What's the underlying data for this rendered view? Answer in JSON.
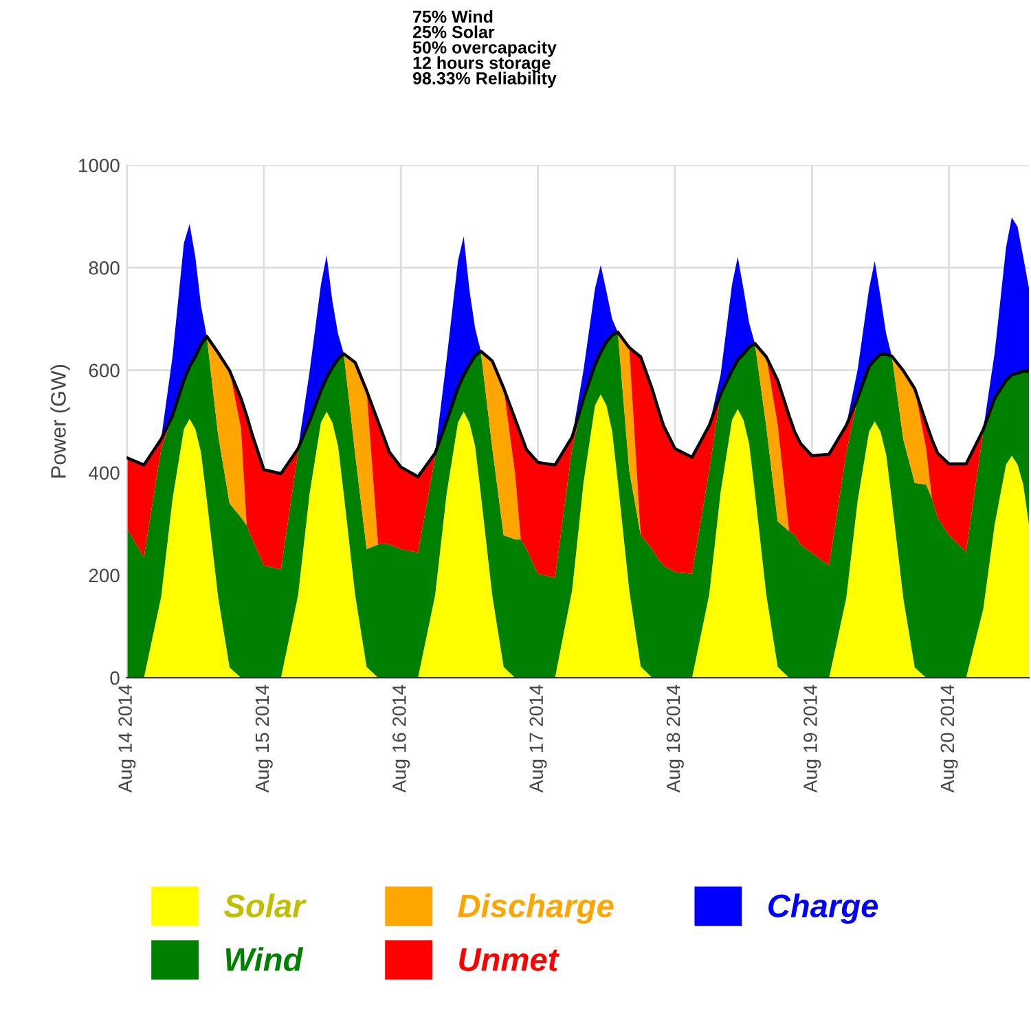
{
  "chart_data": {
    "type": "area",
    "stacked": true,
    "title": "75% Wind\n25% Solar\n50% overcapacity\n12 hours storage\n98.33% Reliability",
    "ylabel": "Power (GW)",
    "x": [
      "2014-08-14T00:00",
      "2014-08-14T03:00",
      "2014-08-14T06:00",
      "2014-08-14T08:00",
      "2014-08-14T10:00",
      "2014-08-14T11:00",
      "2014-08-14T12:00",
      "2014-08-14T13:00",
      "2014-08-14T14:00",
      "2014-08-14T16:00",
      "2014-08-14T18:00",
      "2014-08-14T20:00",
      "2014-08-14T21:00",
      "2014-08-14T22:00",
      "2014-08-15T00:00",
      "2014-08-15T03:00",
      "2014-08-15T06:00",
      "2014-08-15T08:00",
      "2014-08-15T10:00",
      "2014-08-15T11:00",
      "2014-08-15T12:00",
      "2014-08-15T13:00",
      "2014-08-15T14:00",
      "2014-08-15T16:00",
      "2014-08-15T18:00",
      "2014-08-15T20:00",
      "2014-08-15T21:00",
      "2014-08-15T22:00",
      "2014-08-16T00:00",
      "2014-08-16T03:00",
      "2014-08-16T06:00",
      "2014-08-16T08:00",
      "2014-08-16T10:00",
      "2014-08-16T11:00",
      "2014-08-16T12:00",
      "2014-08-16T13:00",
      "2014-08-16T14:00",
      "2014-08-16T16:00",
      "2014-08-16T18:00",
      "2014-08-16T20:00",
      "2014-08-16T21:00",
      "2014-08-16T22:00",
      "2014-08-17T00:00",
      "2014-08-17T03:00",
      "2014-08-17T06:00",
      "2014-08-17T08:00",
      "2014-08-17T10:00",
      "2014-08-17T11:00",
      "2014-08-17T12:00",
      "2014-08-17T13:00",
      "2014-08-17T14:00",
      "2014-08-17T16:00",
      "2014-08-17T18:00",
      "2014-08-17T20:00",
      "2014-08-17T21:00",
      "2014-08-17T22:00",
      "2014-08-18T00:00",
      "2014-08-18T03:00",
      "2014-08-18T06:00",
      "2014-08-18T08:00",
      "2014-08-18T10:00",
      "2014-08-18T11:00",
      "2014-08-18T12:00",
      "2014-08-18T13:00",
      "2014-08-18T14:00",
      "2014-08-18T16:00",
      "2014-08-18T18:00",
      "2014-08-18T20:00",
      "2014-08-18T21:00",
      "2014-08-18T22:00",
      "2014-08-19T00:00",
      "2014-08-19T03:00",
      "2014-08-19T06:00",
      "2014-08-19T08:00",
      "2014-08-19T10:00",
      "2014-08-19T11:00",
      "2014-08-19T12:00",
      "2014-08-19T13:00",
      "2014-08-19T14:00",
      "2014-08-19T16:00",
      "2014-08-19T18:00",
      "2014-08-19T20:00",
      "2014-08-19T21:00",
      "2014-08-19T22:00",
      "2014-08-20T00:00",
      "2014-08-20T03:00",
      "2014-08-20T06:00",
      "2014-08-20T08:00",
      "2014-08-20T10:00",
      "2014-08-20T11:00",
      "2014-08-20T12:00",
      "2014-08-20T13:00",
      "2014-08-20T14:00"
    ],
    "series": [
      {
        "name": "Solar",
        "color": "#ffff00",
        "values": [
          null,
          0,
          157,
          348,
          485,
          505,
          485,
          439,
          348,
          157,
          20,
          0,
          null,
          null,
          null,
          0,
          161,
          358,
          498,
          519,
          498,
          452,
          358,
          161,
          21,
          0,
          null,
          null,
          null,
          0,
          161,
          358,
          498,
          519,
          498,
          452,
          358,
          161,
          21,
          0,
          null,
          null,
          null,
          0,
          171,
          382,
          531,
          553,
          531,
          481,
          382,
          171,
          22,
          0,
          null,
          null,
          null,
          0,
          162,
          362,
          503,
          524,
          503,
          456,
          362,
          162,
          21,
          0,
          null,
          null,
          null,
          0,
          155,
          345,
          480,
          500,
          480,
          435,
          345,
          155,
          20,
          0,
          null,
          null,
          null,
          0,
          134,
          299,
          416,
          433,
          416,
          377,
          299
        ]
      },
      {
        "name": "Wind",
        "color": "#008000",
        "values": [
          291,
          235,
          288,
          163,
          95,
          102,
          141,
          211,
          318,
          316,
          320,
          313,
          297,
          270,
          219,
          211,
          279,
          142,
          62,
          66,
          107,
          170,
          274,
          275,
          230,
          260,
          262,
          260,
          251,
          244,
          269,
          142,
          67,
          71,
          112,
          176,
          279,
          288,
          257,
          270,
          270,
          251,
          203,
          195,
          276,
          163,
          79,
          82,
          124,
          187,
          292,
          233,
          256,
          251,
          233,
          219,
          206,
          203,
          242,
          191,
          96,
          96,
          128,
          189,
          290,
          328,
          284,
          286,
          278,
          260,
          243,
          219,
          283,
          200,
          127,
          120,
          151,
          196,
          282,
          310,
          360,
          377,
          350,
          313,
          278,
          246,
          346,
          246,
          164,
          158,
          178,
          221,
          299
        ]
      },
      {
        "name": "Discharge",
        "color": "#ffa500",
        "values": [
          null,
          null,
          null,
          null,
          null,
          null,
          null,
          null,
          0,
          161,
          259,
          174,
          0,
          null,
          null,
          null,
          null,
          null,
          null,
          null,
          null,
          null,
          0,
          179,
          309,
          0,
          null,
          null,
          null,
          null,
          null,
          null,
          null,
          null,
          null,
          null,
          0,
          169,
          287,
          129,
          0,
          null,
          null,
          null,
          null,
          null,
          null,
          null,
          null,
          null,
          0,
          240,
          0,
          null,
          null,
          null,
          null,
          null,
          null,
          null,
          null,
          null,
          null,
          null,
          0,
          136,
          189,
          0,
          null,
          null,
          null,
          null,
          null,
          null,
          null,
          null,
          null,
          null,
          0,
          134,
          184,
          70,
          0,
          null,
          null,
          null,
          null,
          null,
          null,
          null,
          null,
          null,
          null
        ]
      },
      {
        "name": "Unmet",
        "color": "#ff0000",
        "values": [
          138,
          180,
          20,
          0,
          null,
          null,
          null,
          null,
          null,
          null,
          0,
          58,
          214,
          203,
          187,
          187,
          7,
          0,
          null,
          null,
          null,
          null,
          null,
          null,
          0,
          240,
          208,
          180,
          160,
          148,
          8,
          0,
          null,
          null,
          null,
          null,
          null,
          null,
          0,
          106,
          205,
          194,
          217,
          220,
          23,
          0,
          null,
          null,
          null,
          null,
          null,
          0,
          348,
          313,
          294,
          273,
          241,
          227,
          88,
          0,
          null,
          null,
          null,
          null,
          null,
          0,
          86,
          225,
          201,
          197,
          190,
          217,
          54,
          0,
          null,
          null,
          null,
          null,
          null,
          null,
          0,
          50,
          115,
          125,
          139,
          171,
          4,
          0,
          null,
          null,
          null,
          null,
          null
        ]
      },
      {
        "name": "Charge",
        "color": "#0000ff",
        "values": [
          null,
          null,
          0,
          115,
          268,
          278,
          195,
          75,
          0,
          null,
          null,
          null,
          null,
          null,
          null,
          null,
          0,
          96,
          207,
          239,
          130,
          49,
          0,
          null,
          null,
          null,
          null,
          null,
          null,
          null,
          0,
          120,
          248,
          271,
          147,
          54,
          0,
          null,
          null,
          null,
          null,
          null,
          null,
          null,
          0,
          56,
          149,
          170,
          99,
          32,
          0,
          null,
          null,
          null,
          null,
          null,
          null,
          null,
          0,
          38,
          168,
          201,
          128,
          47,
          0,
          null,
          null,
          null,
          null,
          null,
          null,
          null,
          0,
          56,
          152,
          193,
          112,
          40,
          0,
          null,
          null,
          null,
          null,
          null,
          null,
          null,
          0,
          89,
          260,
          307,
          286,
          223,
          162
        ]
      },
      {
        "type": "line",
        "color": "#000000",
        "values": [
          429,
          415,
          465,
          511,
          580,
          607,
          626,
          650,
          666,
          634,
          599,
          545,
          511,
          473,
          406,
          398,
          447,
          500,
          560,
          585,
          605,
          622,
          632,
          615,
          560,
          500,
          470,
          440,
          411,
          392,
          438,
          500,
          565,
          590,
          610,
          628,
          637,
          618,
          565,
          505,
          475,
          445,
          420,
          415,
          470,
          545,
          610,
          635,
          655,
          668,
          674,
          644,
          626,
          564,
          527,
          492,
          447,
          430,
          492,
          553,
          599,
          620,
          631,
          645,
          652,
          626,
          580,
          511,
          479,
          457,
          433,
          436,
          492,
          545,
          607,
          620,
          631,
          631,
          627,
          599,
          564,
          497,
          465,
          438,
          417,
          417,
          484,
          545,
          580,
          591,
          594,
          598,
          598
        ]
      }
    ],
    "xlim": [
      "2014-08-14T00:00",
      "2014-08-20T14:00"
    ],
    "xticks": [
      {
        "value": "2014-08-14",
        "label": "Aug 14 2014"
      },
      {
        "value": "2014-08-15",
        "label": "Aug 15 2014"
      },
      {
        "value": "2014-08-16",
        "label": "Aug 16 2014"
      },
      {
        "value": "2014-08-17",
        "label": "Aug 17 2014"
      },
      {
        "value": "2014-08-18",
        "label": "Aug 18 2014"
      },
      {
        "value": "2014-08-19",
        "label": "Aug 19 2014"
      },
      {
        "value": "2014-08-20",
        "label": "Aug 20 2014"
      }
    ],
    "ylim": [
      0,
      1000
    ],
    "yticks": [
      0,
      200,
      400,
      600,
      800,
      1000
    ],
    "grid": true,
    "legend": "bottom"
  }
}
